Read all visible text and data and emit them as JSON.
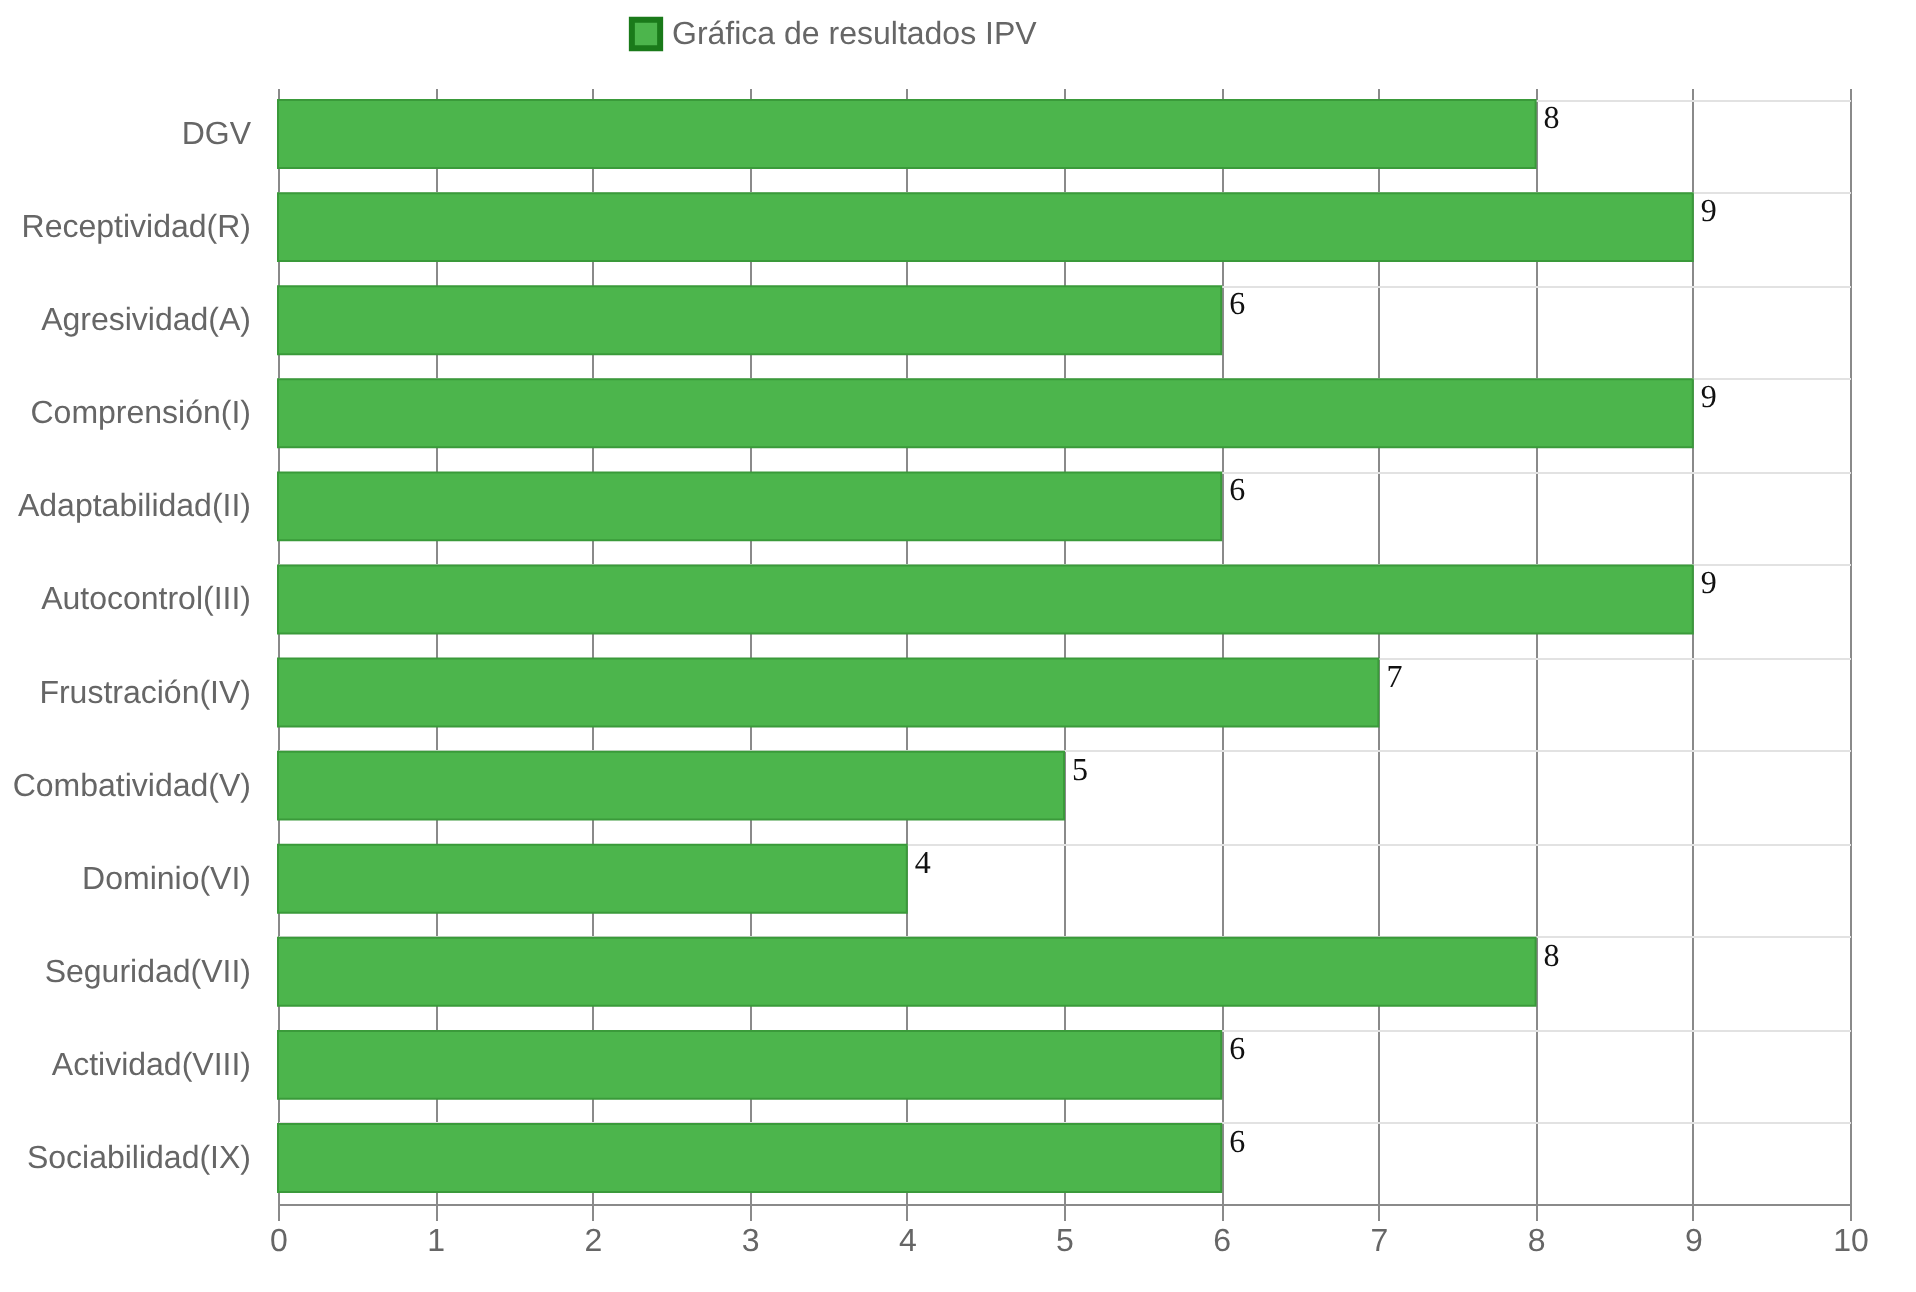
{
  "chart_data": {
    "type": "bar",
    "orientation": "horizontal",
    "categories": [
      "DGV",
      "Receptividad(R)",
      "Agresividad(A)",
      "Comprensión(I)",
      "Adaptabilidad(II)",
      "Autocontrol(III)",
      "Frustración(IV)",
      "Combatividad(V)",
      "Dominio(VI)",
      "Seguridad(VII)",
      "Actividad(VIII)",
      "Sociabilidad(IX)"
    ],
    "series": [
      {
        "name": "Gráfica de resultados IPV",
        "color": "#4cb54c",
        "values": [
          8,
          9,
          6,
          9,
          6,
          9,
          7,
          5,
          4,
          8,
          6,
          6
        ]
      }
    ],
    "xlim": [
      0,
      10
    ],
    "xticks": [
      0,
      1,
      2,
      3,
      4,
      5,
      6,
      7,
      8,
      9,
      10
    ],
    "grid": true,
    "legend": "top",
    "data_labels": true
  }
}
